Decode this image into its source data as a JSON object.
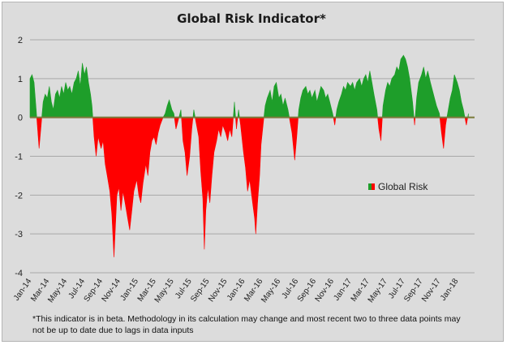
{
  "chart_data": {
    "type": "area",
    "title": "Global Risk Indicator*",
    "xlabel": "",
    "ylabel": "",
    "ylim": [
      -4,
      2
    ],
    "yticks": [
      2,
      1,
      0,
      -1,
      -2,
      -3,
      -4
    ],
    "xlim": [
      "2014-01-01",
      "2018-03-01"
    ],
    "x_tick_labels": [
      "Jan-14",
      "Mar-14",
      "May-14",
      "Jul-14",
      "Sep-14",
      "Nov-14",
      "Jan-15",
      "Mar-15",
      "May-15",
      "Jul-15",
      "Sep-15",
      "Nov-15",
      "Jan-16",
      "Mar-16",
      "May-16",
      "Jul-16",
      "Sep-16",
      "Nov-16",
      "Jan-17",
      "Mar-17",
      "May-17",
      "Jul-17",
      "Sep-17",
      "Nov-17",
      "Jan-18"
    ],
    "grid": "horizontal",
    "legend": {
      "position": "right",
      "entries": [
        "Global Risk"
      ]
    },
    "colors": {
      "positive": "#1e9e2a",
      "negative": "#ff0000",
      "zero_line": "#7a7a3a",
      "grid": "#a8a8a8"
    },
    "series": [
      {
        "name": "Global Risk",
        "points": [
          [
            "2014-01-01",
            1.0
          ],
          [
            "2014-01-08",
            1.1
          ],
          [
            "2014-01-15",
            0.9
          ],
          [
            "2014-01-22",
            0.2
          ],
          [
            "2014-01-29",
            -0.5
          ],
          [
            "2014-02-01",
            -0.8
          ],
          [
            "2014-02-08",
            -0.2
          ],
          [
            "2014-02-15",
            0.4
          ],
          [
            "2014-02-22",
            0.6
          ],
          [
            "2014-03-01",
            0.5
          ],
          [
            "2014-03-08",
            0.8
          ],
          [
            "2014-03-15",
            0.4
          ],
          [
            "2014-03-22",
            0.2
          ],
          [
            "2014-03-29",
            0.6
          ],
          [
            "2014-04-05",
            0.7
          ],
          [
            "2014-04-12",
            0.5
          ],
          [
            "2014-04-19",
            0.8
          ],
          [
            "2014-04-26",
            0.6
          ],
          [
            "2014-05-03",
            0.9
          ],
          [
            "2014-05-10",
            0.7
          ],
          [
            "2014-05-17",
            0.8
          ],
          [
            "2014-05-24",
            0.6
          ],
          [
            "2014-06-01",
            0.9
          ],
          [
            "2014-06-08",
            1.0
          ],
          [
            "2014-06-15",
            1.2
          ],
          [
            "2014-06-22",
            0.8
          ],
          [
            "2014-06-29",
            1.4
          ],
          [
            "2014-07-06",
            1.1
          ],
          [
            "2014-07-13",
            1.3
          ],
          [
            "2014-07-20",
            0.9
          ],
          [
            "2014-07-27",
            0.6
          ],
          [
            "2014-08-01",
            0.3
          ],
          [
            "2014-08-08",
            -0.5
          ],
          [
            "2014-08-15",
            -1.0
          ],
          [
            "2014-08-22",
            -0.5
          ],
          [
            "2014-09-01",
            -0.8
          ],
          [
            "2014-09-08",
            -0.6
          ],
          [
            "2014-09-15",
            -1.2
          ],
          [
            "2014-09-22",
            -1.5
          ],
          [
            "2014-10-01",
            -1.9
          ],
          [
            "2014-10-08",
            -2.5
          ],
          [
            "2014-10-15",
            -3.6
          ],
          [
            "2014-10-20",
            -2.8
          ],
          [
            "2014-10-25",
            -2.0
          ],
          [
            "2014-11-01",
            -1.8
          ],
          [
            "2014-11-08",
            -2.4
          ],
          [
            "2014-11-15",
            -1.9
          ],
          [
            "2014-11-22",
            -2.2
          ],
          [
            "2014-12-01",
            -2.6
          ],
          [
            "2014-12-08",
            -2.9
          ],
          [
            "2014-12-15",
            -2.4
          ],
          [
            "2014-12-22",
            -1.9
          ],
          [
            "2015-01-01",
            -1.6
          ],
          [
            "2015-01-08",
            -2.0
          ],
          [
            "2015-01-15",
            -2.2
          ],
          [
            "2015-01-22",
            -1.7
          ],
          [
            "2015-02-01",
            -1.2
          ],
          [
            "2015-02-08",
            -1.5
          ],
          [
            "2015-02-15",
            -0.9
          ],
          [
            "2015-02-22",
            -0.6
          ],
          [
            "2015-03-01",
            -0.5
          ],
          [
            "2015-03-08",
            -0.7
          ],
          [
            "2015-03-15",
            -0.4
          ],
          [
            "2015-03-22",
            -0.2
          ],
          [
            "2015-04-01",
            0.0
          ],
          [
            "2015-04-08",
            0.1
          ],
          [
            "2015-04-15",
            0.3
          ],
          [
            "2015-04-22",
            0.45
          ],
          [
            "2015-05-01",
            0.2
          ],
          [
            "2015-05-08",
            0.1
          ],
          [
            "2015-05-15",
            -0.3
          ],
          [
            "2015-05-22",
            -0.1
          ],
          [
            "2015-06-01",
            0.2
          ],
          [
            "2015-06-08",
            -0.6
          ],
          [
            "2015-06-15",
            -0.9
          ],
          [
            "2015-06-22",
            -1.5
          ],
          [
            "2015-07-01",
            -1.0
          ],
          [
            "2015-07-08",
            -0.3
          ],
          [
            "2015-07-15",
            0.2
          ],
          [
            "2015-07-22",
            -0.1
          ],
          [
            "2015-08-01",
            -0.5
          ],
          [
            "2015-08-08",
            -1.4
          ],
          [
            "2015-08-15",
            -2.1
          ],
          [
            "2015-08-20",
            -3.4
          ],
          [
            "2015-08-25",
            -2.4
          ],
          [
            "2015-09-01",
            -1.8
          ],
          [
            "2015-09-08",
            -2.2
          ],
          [
            "2015-09-15",
            -1.5
          ],
          [
            "2015-09-22",
            -0.9
          ],
          [
            "2015-10-01",
            -0.6
          ],
          [
            "2015-10-08",
            -0.3
          ],
          [
            "2015-10-15",
            -0.5
          ],
          [
            "2015-10-22",
            -0.2
          ],
          [
            "2015-11-01",
            -0.4
          ],
          [
            "2015-11-08",
            -0.6
          ],
          [
            "2015-11-15",
            -0.3
          ],
          [
            "2015-11-22",
            -0.5
          ],
          [
            "2015-12-01",
            0.4
          ],
          [
            "2015-12-08",
            -0.3
          ],
          [
            "2015-12-15",
            0.2
          ],
          [
            "2015-12-22",
            -0.2
          ],
          [
            "2016-01-01",
            -0.9
          ],
          [
            "2016-01-08",
            -1.3
          ],
          [
            "2016-01-15",
            -1.9
          ],
          [
            "2016-01-22",
            -1.6
          ],
          [
            "2016-02-01",
            -2.2
          ],
          [
            "2016-02-08",
            -2.6
          ],
          [
            "2016-02-12",
            -3.0
          ],
          [
            "2016-02-18",
            -2.2
          ],
          [
            "2016-02-25",
            -1.5
          ],
          [
            "2016-03-01",
            -0.7
          ],
          [
            "2016-03-08",
            -0.2
          ],
          [
            "2016-03-15",
            0.3
          ],
          [
            "2016-03-22",
            0.5
          ],
          [
            "2016-04-01",
            0.7
          ],
          [
            "2016-04-08",
            0.4
          ],
          [
            "2016-04-15",
            0.8
          ],
          [
            "2016-04-22",
            0.9
          ],
          [
            "2016-05-01",
            0.5
          ],
          [
            "2016-05-08",
            0.6
          ],
          [
            "2016-05-15",
            0.3
          ],
          [
            "2016-05-22",
            0.5
          ],
          [
            "2016-06-01",
            0.2
          ],
          [
            "2016-06-08",
            -0.1
          ],
          [
            "2016-06-15",
            -0.4
          ],
          [
            "2016-06-24",
            -1.1
          ],
          [
            "2016-07-01",
            -0.5
          ],
          [
            "2016-07-08",
            0.2
          ],
          [
            "2016-07-15",
            0.5
          ],
          [
            "2016-07-22",
            0.7
          ],
          [
            "2016-08-01",
            0.8
          ],
          [
            "2016-08-08",
            0.6
          ],
          [
            "2016-08-15",
            0.7
          ],
          [
            "2016-08-22",
            0.5
          ],
          [
            "2016-09-01",
            0.7
          ],
          [
            "2016-09-08",
            0.4
          ],
          [
            "2016-09-15",
            0.6
          ],
          [
            "2016-09-22",
            0.8
          ],
          [
            "2016-10-01",
            0.7
          ],
          [
            "2016-10-08",
            0.5
          ],
          [
            "2016-10-15",
            0.6
          ],
          [
            "2016-10-22",
            0.4
          ],
          [
            "2016-11-01",
            0.1
          ],
          [
            "2016-11-08",
            -0.2
          ],
          [
            "2016-11-15",
            0.2
          ],
          [
            "2016-11-22",
            0.4
          ],
          [
            "2016-12-01",
            0.6
          ],
          [
            "2016-12-08",
            0.8
          ],
          [
            "2016-12-15",
            0.7
          ],
          [
            "2016-12-22",
            0.9
          ],
          [
            "2017-01-01",
            0.8
          ],
          [
            "2017-01-08",
            0.9
          ],
          [
            "2017-01-15",
            0.7
          ],
          [
            "2017-01-22",
            0.9
          ],
          [
            "2017-02-01",
            1.0
          ],
          [
            "2017-02-08",
            0.8
          ],
          [
            "2017-02-15",
            1.0
          ],
          [
            "2017-02-22",
            1.1
          ],
          [
            "2017-03-01",
            0.9
          ],
          [
            "2017-03-08",
            1.2
          ],
          [
            "2017-03-15",
            0.9
          ],
          [
            "2017-03-22",
            0.6
          ],
          [
            "2017-04-01",
            0.2
          ],
          [
            "2017-04-08",
            -0.3
          ],
          [
            "2017-04-15",
            -0.6
          ],
          [
            "2017-04-22",
            0.3
          ],
          [
            "2017-05-01",
            0.7
          ],
          [
            "2017-05-08",
            0.9
          ],
          [
            "2017-05-15",
            0.8
          ],
          [
            "2017-05-22",
            1.0
          ],
          [
            "2017-06-01",
            1.1
          ],
          [
            "2017-06-08",
            1.3
          ],
          [
            "2017-06-15",
            1.2
          ],
          [
            "2017-06-22",
            1.5
          ],
          [
            "2017-07-01",
            1.6
          ],
          [
            "2017-07-08",
            1.5
          ],
          [
            "2017-07-15",
            1.3
          ],
          [
            "2017-07-22",
            1.0
          ],
          [
            "2017-08-01",
            0.4
          ],
          [
            "2017-08-08",
            -0.2
          ],
          [
            "2017-08-15",
            0.5
          ],
          [
            "2017-08-22",
            0.9
          ],
          [
            "2017-09-01",
            1.1
          ],
          [
            "2017-09-08",
            1.3
          ],
          [
            "2017-09-15",
            1.0
          ],
          [
            "2017-09-22",
            1.2
          ],
          [
            "2017-10-01",
            0.9
          ],
          [
            "2017-10-08",
            0.7
          ],
          [
            "2017-10-15",
            0.5
          ],
          [
            "2017-10-22",
            0.3
          ],
          [
            "2017-11-01",
            0.1
          ],
          [
            "2017-11-08",
            -0.4
          ],
          [
            "2017-11-15",
            -0.8
          ],
          [
            "2017-11-22",
            -0.2
          ],
          [
            "2017-12-01",
            0.2
          ],
          [
            "2017-12-08",
            0.5
          ],
          [
            "2017-12-15",
            0.7
          ],
          [
            "2017-12-22",
            1.1
          ],
          [
            "2018-01-01",
            0.9
          ],
          [
            "2018-01-08",
            0.7
          ],
          [
            "2018-01-15",
            0.4
          ],
          [
            "2018-01-22",
            0.2
          ],
          [
            "2018-02-01",
            -0.2
          ],
          [
            "2018-02-08",
            0.1
          ]
        ]
      }
    ]
  },
  "footnote": "*This indicator is in beta. Methodology in its calculation may change and most recent two to three data points may not be up to date due to lags in data inputs"
}
